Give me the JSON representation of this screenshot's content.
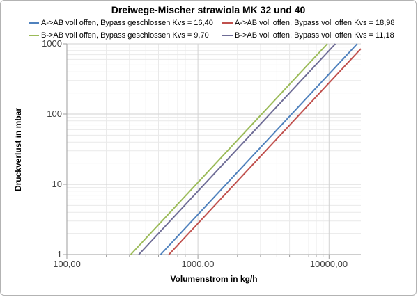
{
  "frame": {
    "background_color": "#ffffff",
    "border_color": "#b3b3b3"
  },
  "chart_data": {
    "type": "line",
    "title": "Dreiwege-Mischer strawiola MK 32 und 40",
    "xlabel": "Volumenstrom in kg/h",
    "ylabel": "Druckverlust in mbar",
    "x_axis": {
      "scale": "log",
      "min": 100,
      "max": 17500,
      "tick_values": [
        100,
        1000,
        10000
      ],
      "tick_labels": [
        "100,00",
        "1000,00",
        "10000,00"
      ],
      "minor_gridlines": true
    },
    "y_axis": {
      "scale": "log",
      "min": 1,
      "max": 1000,
      "tick_values": [
        1,
        10,
        100,
        1000
      ],
      "tick_labels": [
        "1",
        "10",
        "100",
        "1000"
      ],
      "minor_gridlines": true
    },
    "model": "dp_mbar = 1000 * (Q_kgh / (1000 * Kvs))^2",
    "series": [
      {
        "name": "A->AB voll offen, Bypass geschlossen Kvs = 16,40",
        "kvs": 16.4,
        "color": "#4F81BD",
        "flow_kgh_at_1_mbar": 519,
        "flow_kgh_at_1000_mbar": 16400
      },
      {
        "name": "A->AB voll offen, Bypass voll offen Kvs = 18,98",
        "kvs": 18.98,
        "color": "#C0504D",
        "flow_kgh_at_1_mbar": 600,
        "flow_kgh_at_1000_mbar": 18980
      },
      {
        "name": "B->AB voll offen, Bypass geschlossen Kvs = 9,70",
        "kvs": 9.7,
        "color": "#9BBB59",
        "flow_kgh_at_1_mbar": 307,
        "flow_kgh_at_1000_mbar": 9700
      },
      {
        "name": "B->AB voll offen, Bypass voll offen Kvs = 11,18",
        "kvs": 11.18,
        "color": "#6E6C96",
        "flow_kgh_at_1_mbar": 354,
        "flow_kgh_at_1000_mbar": 11180
      }
    ],
    "legend_position": "top",
    "legend_columns": 2,
    "style": {
      "minor_grid_color": "#e9e9e9",
      "major_grid_color": "#d2d2d2",
      "axis_color": "#9d9d9d",
      "tick_text_color": "#404040",
      "line_width": 2
    }
  }
}
